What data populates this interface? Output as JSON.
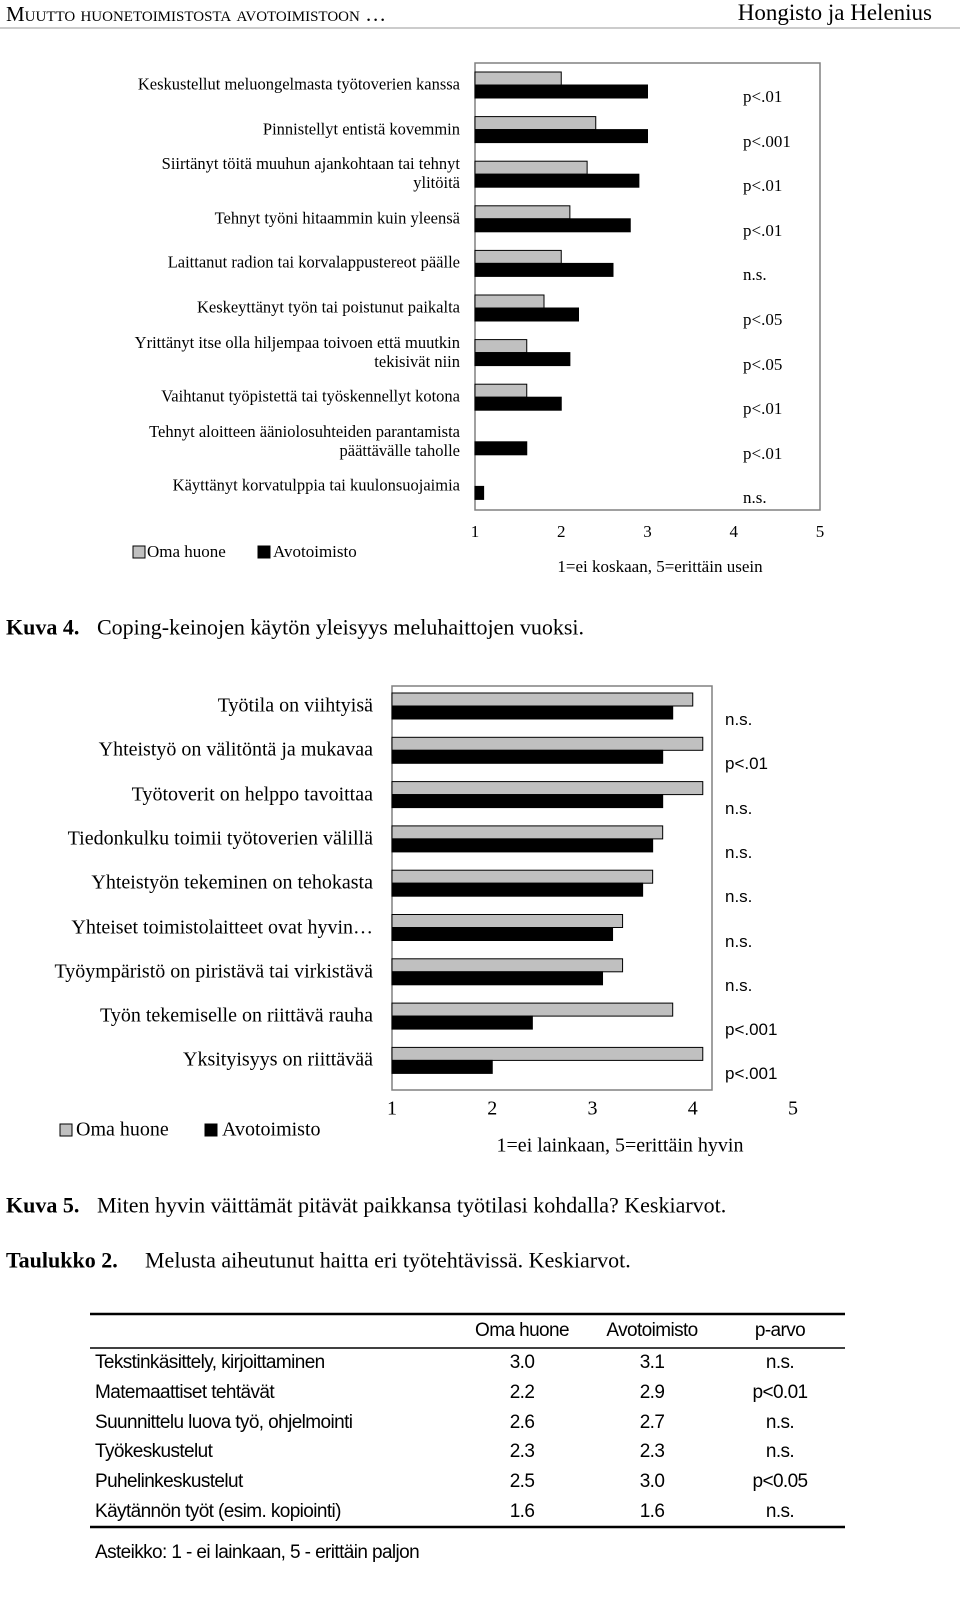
{
  "header": {
    "title": "Muutto huonetoimistosta avotoimistoon …",
    "authors": "Hongisto ja Helenius"
  },
  "chart_data": [
    {
      "type": "bar",
      "orientation": "horizontal",
      "categories": [
        "Keskustellut meluongelmasta työtoverien kanssa",
        "Pinnistellyt entistä kovemmin",
        "Siirtänyt töitä muuhun ajankohtaan tai tehnyt ylitöitä",
        "Tehnyt työni hitaammin kuin yleensä",
        "Laittanut radion tai korvalappustereot päälle",
        "Keskeyttänyt työn tai poistunut paikalta",
        "Yrittänyt itse olla hiljempaa toivoen että muutkin tekisivät niin",
        "Vaihtanut työpistettä tai työskennellyt kotona",
        "Tehnyt aloitteen ääniolosuhteiden parantamista päättävälle taholle",
        "Käyttänyt korvatulppia tai kuulonsuojaimia"
      ],
      "series": [
        {
          "name": "Oma huone",
          "color": "#c0c0c0",
          "values": [
            2.0,
            2.4,
            2.3,
            2.1,
            2.0,
            1.8,
            1.6,
            1.6,
            1.0,
            1.0
          ]
        },
        {
          "name": "Avotoimisto",
          "color": "#000000",
          "values": [
            3.0,
            3.0,
            2.9,
            2.8,
            2.6,
            2.2,
            2.1,
            2.0,
            1.6,
            1.1
          ]
        }
      ],
      "annotations": [
        "p<.01",
        "p<.001",
        "p<.01",
        "p<.01",
        "n.s.",
        "p<.05",
        "p<.05",
        "p<.01",
        "p<.01",
        "n.s."
      ],
      "xlim": [
        1,
        5
      ],
      "xticks": [
        1,
        2,
        3,
        4,
        5
      ],
      "xlabel": "1=ei koskaan, 5=erittäin usein"
    },
    {
      "type": "bar",
      "orientation": "horizontal",
      "categories": [
        "Työtila on viihtyisä",
        "Yhteistyö on välitöntä ja mukavaa",
        "Työtoverit on helppo tavoittaa",
        "Tiedonkulku toimii työtoverien välillä",
        "Yhteistyön tekeminen on tehokasta",
        "Yhteiset toimistolaitteet ovat hyvin…",
        "Työympäristö on piristävä tai virkistävä",
        "Työn tekemiselle on riittävä rauha",
        "Yksityisyys on riittävää"
      ],
      "series": [
        {
          "name": "Oma huone",
          "color": "#c0c0c0",
          "values": [
            4.0,
            4.1,
            4.1,
            3.7,
            3.6,
            3.3,
            3.3,
            3.8,
            4.1
          ]
        },
        {
          "name": "Avotoimisto",
          "color": "#000000",
          "values": [
            3.8,
            3.7,
            3.7,
            3.6,
            3.5,
            3.2,
            3.1,
            2.4,
            2.0
          ]
        }
      ],
      "annotations": [
        "n.s.",
        "p<.01",
        "n.s.",
        "n.s.",
        "n.s.",
        "n.s.",
        "n.s.",
        "p<.001",
        "p<.001"
      ],
      "xlim": [
        1,
        5
      ],
      "xticks": [
        1,
        2,
        3,
        4,
        5
      ],
      "xlabel": "1=ei lainkaan, 5=erittäin hyvin"
    }
  ],
  "captions": [
    {
      "label": "Kuva 4.",
      "text": "Coping-keinojen käytön yleisyys meluhaittojen vuoksi."
    },
    {
      "label": "Kuva 5.",
      "text": "Miten hyvin väittämät pitävät paikkansa työtilasi kohdalla? Keskiarvot."
    }
  ],
  "table": {
    "label": "Taulukko 2.",
    "title": "Melusta aiheutunut haitta eri työtehtävissä. Keskiarvot.",
    "columns": [
      "Oma huone",
      "Avotoimisto",
      "p-arvo"
    ],
    "rows": [
      [
        "Tekstinkäsittely, kirjoittaminen",
        "3.0",
        "3.1",
        "n.s."
      ],
      [
        "Matemaattiset tehtävät",
        "2.2",
        "2.9",
        "p<0.01"
      ],
      [
        "Suunnittelu luova työ, ohjelmointi",
        "2.6",
        "2.7",
        "n.s."
      ],
      [
        "Työkeskustelut",
        "2.3",
        "2.3",
        "n.s."
      ],
      [
        "Puhelinkeskustelut",
        "2.5",
        "3.0",
        "p<0.05"
      ],
      [
        "Käytännön työt (esim. kopiointi)",
        "1.6",
        "1.6",
        "n.s."
      ]
    ],
    "note": "Asteikko: 1 - ei lainkaan, 5 - erittäin paljon"
  }
}
